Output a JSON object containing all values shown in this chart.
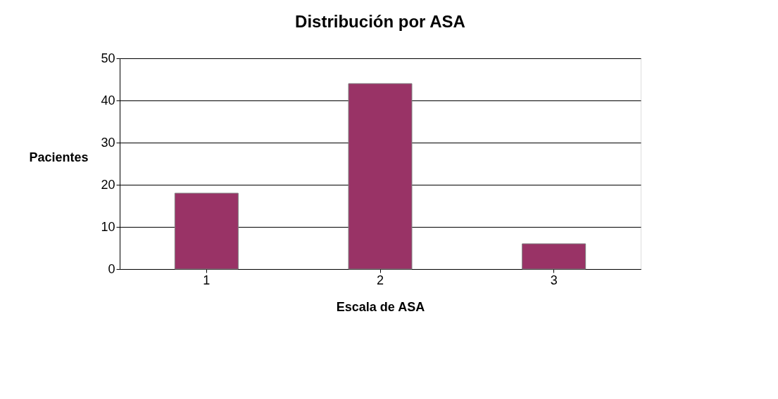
{
  "chart_data": {
    "type": "bar",
    "title": "Distribución por ASA",
    "xlabel": "Escala de ASA",
    "ylabel": "Pacientes",
    "categories": [
      "1",
      "2",
      "3"
    ],
    "series": [
      {
        "color": "#993366",
        "values": [
          18,
          44,
          6
        ]
      }
    ],
    "ylim": [
      0,
      50
    ],
    "yticks": [
      0,
      10,
      20,
      30,
      40,
      50
    ],
    "grid": "y"
  }
}
